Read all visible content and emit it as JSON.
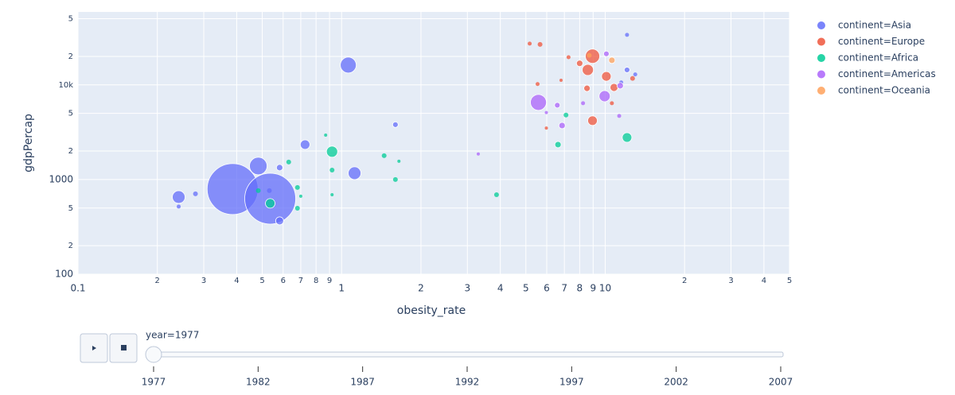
{
  "chart_data": {
    "type": "scatter",
    "xlabel": "obesity_rate",
    "ylabel": "gdpPercap",
    "xscale": "log",
    "yscale": "log",
    "grid": true,
    "xlim": [
      0.1,
      50
    ],
    "ylim": [
      100,
      59000
    ],
    "xticks": [
      0.1,
      {
        "value": 0.2,
        "label": "2"
      },
      {
        "value": 0.3,
        "label": "3"
      },
      {
        "value": 0.4,
        "label": "4"
      },
      {
        "value": 0.5,
        "label": "5"
      },
      {
        "value": 0.6,
        "label": "6"
      },
      {
        "value": 0.7,
        "label": "7"
      },
      {
        "value": 0.8,
        "label": "8"
      },
      {
        "value": 0.9,
        "label": "9"
      },
      1,
      2,
      3,
      4,
      5,
      6,
      7,
      8,
      9,
      10,
      {
        "value": 20,
        "label": "2"
      },
      {
        "value": 30,
        "label": "3"
      },
      {
        "value": 40,
        "label": "4"
      },
      {
        "value": 50,
        "label": "5"
      }
    ],
    "yticks": [
      100,
      {
        "value": 200,
        "label": "2"
      },
      {
        "value": 500,
        "label": "5"
      },
      1000,
      {
        "value": 2000,
        "label": "2"
      },
      {
        "value": 5000,
        "label": "5"
      },
      {
        "value": 10000,
        "label": "10k"
      },
      {
        "value": 20000,
        "label": "2"
      },
      {
        "value": 50000,
        "label": "5"
      }
    ],
    "series": [
      {
        "name": "continent=Asia",
        "color": "#636efa",
        "x": [
          0.386,
          0.536,
          0.483,
          0.241,
          0.241,
          1.06,
          1.12,
          0.727,
          0.582,
          0.582,
          1.6,
          0.279,
          0.532,
          12.1,
          12.1,
          13.0,
          11.5
        ],
        "y": [
          793,
          628,
          1390,
          653,
          518,
          16200,
          1168,
          2340,
          366,
          1337,
          3800,
          706,
          763,
          33800,
          14400,
          12900,
          10600
        ],
        "size": [
          64,
          64,
          22,
          16,
          5,
          20,
          16,
          12,
          10,
          8,
          7,
          6,
          6,
          5,
          7,
          5,
          5
        ]
      },
      {
        "name": "continent=Europe",
        "color": "#EF553B",
        "x": [
          8.95,
          8.59,
          8.95,
          10.1,
          10.8,
          8.53,
          8.0,
          5.66,
          5.17,
          5.54,
          7.26,
          12.7,
          10.6,
          5.98,
          6.8
        ],
        "y": [
          20100,
          14400,
          4190,
          12300,
          9400,
          9200,
          16900,
          26800,
          27300,
          10200,
          19600,
          11700,
          6400,
          3500,
          11200
        ],
        "size": [
          18,
          14,
          12,
          12,
          10,
          8,
          8,
          6,
          5,
          5,
          5,
          6,
          5,
          4,
          4
        ]
      },
      {
        "name": "continent=Africa",
        "color": "#00cc96",
        "x": [
          0.92,
          0.536,
          12.1,
          6.62,
          7.1,
          1.6,
          0.68,
          0.68,
          0.92,
          1.45,
          0.63,
          0.483,
          3.87,
          0.87,
          0.92,
          0.7,
          1.65
        ],
        "y": [
          1970,
          560,
          2780,
          2340,
          4800,
          1000,
          824,
          498,
          1260,
          1787,
          1530,
          763,
          692,
          2950,
          692,
          666,
          1560
        ],
        "size": [
          14,
          12,
          12,
          8,
          6,
          6,
          6,
          6,
          6,
          6,
          6,
          6,
          6,
          4,
          4,
          4,
          4
        ]
      },
      {
        "name": "continent=Americas",
        "color": "#ab63fa",
        "x": [
          5.58,
          9.95,
          6.86,
          6.58,
          11.4,
          10.1,
          11.3,
          3.3,
          8.24,
          5.98
        ],
        "y": [
          6530,
          7600,
          3720,
          6100,
          9800,
          21300,
          4700,
          1860,
          6400,
          5100
        ],
        "size": [
          20,
          14,
          8,
          7,
          8,
          7,
          5,
          4,
          5,
          4
        ]
      },
      {
        "name": "continent=Oceania",
        "color": "#FFA15A",
        "x": [
          10.6,
          8.7
        ],
        "y": [
          18200,
          20500
        ],
        "size": [
          8,
          6
        ]
      }
    ]
  },
  "slider": {
    "current": "year=1977",
    "steps": [
      "1977",
      "1982",
      "1987",
      "1992",
      "1997",
      "2002",
      "2007"
    ]
  }
}
